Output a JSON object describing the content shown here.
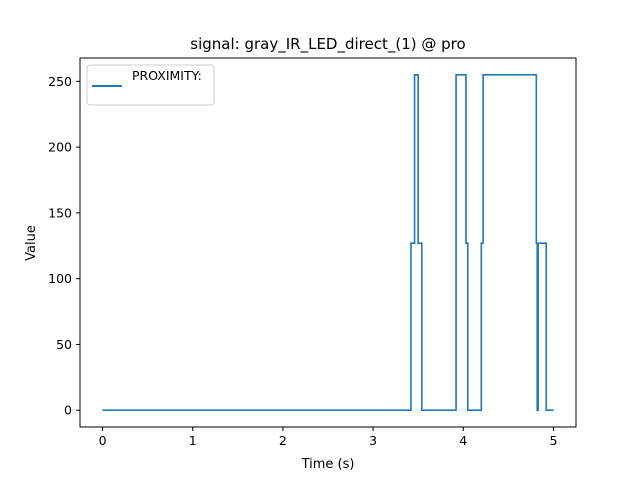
{
  "chart_data": {
    "type": "line",
    "title": "signal: gray_IR_LED_direct_(1) @ pro",
    "xlabel": "Time (s)",
    "ylabel": "Value",
    "xlim": [
      -0.25,
      5.25
    ],
    "ylim": [
      -12.75,
      267.75
    ],
    "xticks": [
      0,
      1,
      2,
      3,
      4,
      5
    ],
    "yticks": [
      0,
      50,
      100,
      150,
      200,
      250
    ],
    "grid": false,
    "legend": {
      "position": "top-left",
      "entries": [
        "PROXIMITY:"
      ]
    },
    "series": [
      {
        "name": "PROXIMITY:",
        "color": "#1f77b4",
        "step": "post",
        "x": [
          0,
          3.42,
          3.46,
          3.5,
          3.54,
          3.92,
          4.03,
          4.05,
          4.2,
          4.22,
          4.81,
          4.82,
          4.83,
          4.84,
          4.92,
          5.0
        ],
        "y": [
          0,
          127,
          255,
          127,
          0,
          255,
          127,
          0,
          127,
          255,
          127,
          0,
          127,
          127,
          0,
          0
        ]
      }
    ]
  }
}
